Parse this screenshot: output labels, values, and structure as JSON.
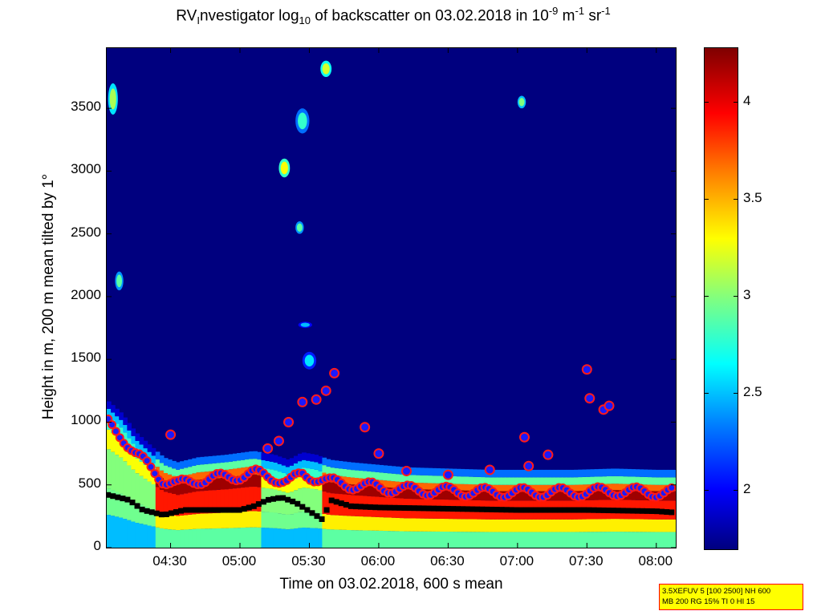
{
  "title": {
    "prefix": "RV",
    "sub1": "I",
    "mid": "nvestigator log",
    "sub2": "10",
    "rest": " of backscatter on 03.02.2018 in 10",
    "sup1": "-9",
    "unit1": " m",
    "sup2": "-1",
    "unit2": " sr",
    "sup3": "-1"
  },
  "settings_box": {
    "line1": "3.5XEFUV 5 [100 2500] NH 600",
    "line2": "MB 200 RG 15% TI 0 HI 15"
  },
  "chart_data": {
    "type": "heatmap",
    "xlabel": "Time on 03.02.2018, 600 s mean",
    "ylabel": "Height in m, 200 m mean tilted by 1°",
    "x_ticks": [
      "04:30",
      "05:00",
      "05:30",
      "06:00",
      "06:30",
      "07:00",
      "07:30",
      "08:00"
    ],
    "x_tick_hours": [
      4.5,
      5.0,
      5.5,
      6.0,
      6.5,
      7.0,
      7.5,
      8.0
    ],
    "xlim_hours": [
      4.04,
      8.14
    ],
    "y_ticks": [
      0,
      500,
      1000,
      1500,
      2000,
      2500,
      3000,
      3500
    ],
    "ylim": [
      0,
      3980
    ],
    "colorbar": {
      "ticks": [
        "2",
        "2.5",
        "3",
        "3.5",
        "4"
      ],
      "tick_values": [
        2,
        2.5,
        3,
        3.5,
        4
      ],
      "range": [
        1.7,
        4.28
      ]
    },
    "boundary_layer_top": {
      "t": [
        4.05,
        4.15,
        4.25,
        4.35,
        4.45,
        4.55,
        4.7,
        4.9,
        5.1,
        5.25,
        5.35,
        5.45,
        5.55,
        5.65,
        5.8,
        6.0,
        6.2,
        6.5,
        6.8,
        7.1,
        7.4,
        7.7,
        8.0,
        8.13
      ],
      "h": [
        1050,
        950,
        800,
        700,
        600,
        560,
        600,
        620,
        650,
        620,
        580,
        640,
        620,
        580,
        560,
        540,
        520,
        510,
        500,
        500,
        500,
        510,
        500,
        500
      ]
    },
    "cloud_base_markers": {
      "t": [
        4.5,
        5.2,
        5.28,
        5.35,
        5.45,
        5.55,
        5.62,
        5.68,
        5.9,
        6.0,
        6.2,
        6.5,
        6.8,
        7.05,
        7.08,
        7.22,
        7.5,
        7.52,
        7.62,
        7.66
      ],
      "h": [
        900,
        790,
        850,
        1000,
        1160,
        1180,
        1250,
        1390,
        960,
        750,
        610,
        580,
        620,
        880,
        650,
        740,
        1420,
        1190,
        1100,
        1130
      ]
    },
    "mixing_layer": {
      "t": [
        4.05,
        4.2,
        4.3,
        4.45,
        4.6,
        4.8,
        5.0,
        5.1,
        5.2,
        5.3,
        5.4,
        5.5,
        5.6,
        5.65,
        5.8,
        6.0,
        6.5,
        7.0,
        7.5,
        8.0,
        8.13
      ],
      "h": [
        420,
        380,
        300,
        260,
        300,
        300,
        300,
        330,
        380,
        400,
        360,
        290,
        220,
        380,
        330,
        320,
        310,
        300,
        300,
        290,
        280
      ]
    },
    "elevated_aerosol": [
      {
        "t": [
          4.05,
          4.12
        ],
        "h": [
          3450,
          3700
        ],
        "v": 3.1
      },
      {
        "t": [
          4.1,
          4.16
        ],
        "h": [
          2050,
          2200
        ],
        "v": 2.9
      },
      {
        "t": [
          5.28,
          5.36
        ],
        "h": [
          2950,
          3100
        ],
        "v": 3.3
      },
      {
        "t": [
          5.4,
          5.46
        ],
        "h": [
          2500,
          2600
        ],
        "v": 2.9
      },
      {
        "t": [
          5.58,
          5.66
        ],
        "h": [
          3750,
          3880
        ],
        "v": 3.2
      },
      {
        "t": [
          5.4,
          5.5
        ],
        "h": [
          3300,
          3500
        ],
        "v": 2.8
      },
      {
        "t": [
          7.0,
          7.06
        ],
        "h": [
          3500,
          3600
        ],
        "v": 3.0
      },
      {
        "t": [
          5.42,
          5.52
        ],
        "h": [
          1750,
          1800
        ],
        "v": 2.5
      },
      {
        "t": [
          5.45,
          5.55
        ],
        "h": [
          1420,
          1560
        ],
        "v": 2.6
      }
    ]
  }
}
